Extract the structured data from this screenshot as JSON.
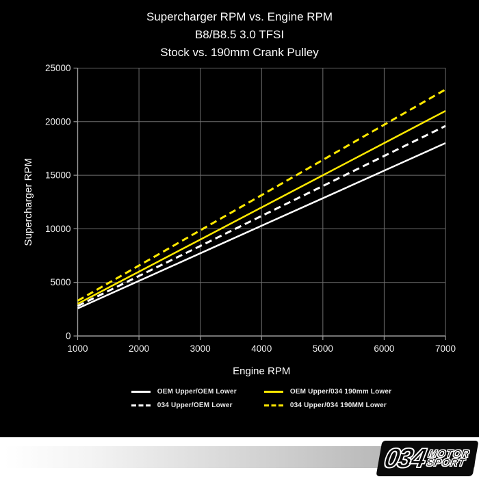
{
  "chart_data": {
    "type": "line",
    "title": "Supercharger RPM vs. Engine RPM",
    "subtitle1": "B8/B8.5 3.0 TFSI",
    "subtitle2": "Stock vs. 190mm Crank Pulley",
    "xlabel": "Engine RPM",
    "ylabel": "Supercharger RPM",
    "xlim": [
      1000,
      7000
    ],
    "ylim": [
      0,
      25000
    ],
    "xticks": [
      1000,
      2000,
      3000,
      4000,
      5000,
      6000,
      7000
    ],
    "yticks": [
      0,
      5000,
      10000,
      15000,
      20000,
      25000
    ],
    "grid": true,
    "legend_position": "bottom",
    "x": [
      1000,
      2000,
      3000,
      4000,
      5000,
      6000,
      7000
    ],
    "series": [
      {
        "name": "OEM Upper/OEM Lower",
        "color": "#ffffff",
        "style": "solid",
        "values": [
          2571,
          5143,
          7714,
          10286,
          12857,
          15429,
          18000
        ]
      },
      {
        "name": "034 Upper/OEM Lower",
        "color": "#ffffff",
        "style": "dashed",
        "values": [
          2800,
          5600,
          8400,
          11200,
          14000,
          16800,
          19600
        ]
      },
      {
        "name": "OEM Upper/034 190mm Lower",
        "color": "#ffe900",
        "style": "solid",
        "values": [
          3000,
          6000,
          9000,
          12000,
          15000,
          18000,
          21000
        ]
      },
      {
        "name": "034 Upper/034 190MM Lower",
        "color": "#ffe900",
        "style": "dashed",
        "values": [
          3286,
          6571,
          9857,
          13143,
          16429,
          19714,
          23000
        ]
      }
    ],
    "background_color": "#000000",
    "grid_color": "#6f6f6f"
  },
  "footer": {
    "logo_number": "034",
    "logo_word_top": "MOTOR",
    "logo_word_bottom": "SPORT"
  }
}
